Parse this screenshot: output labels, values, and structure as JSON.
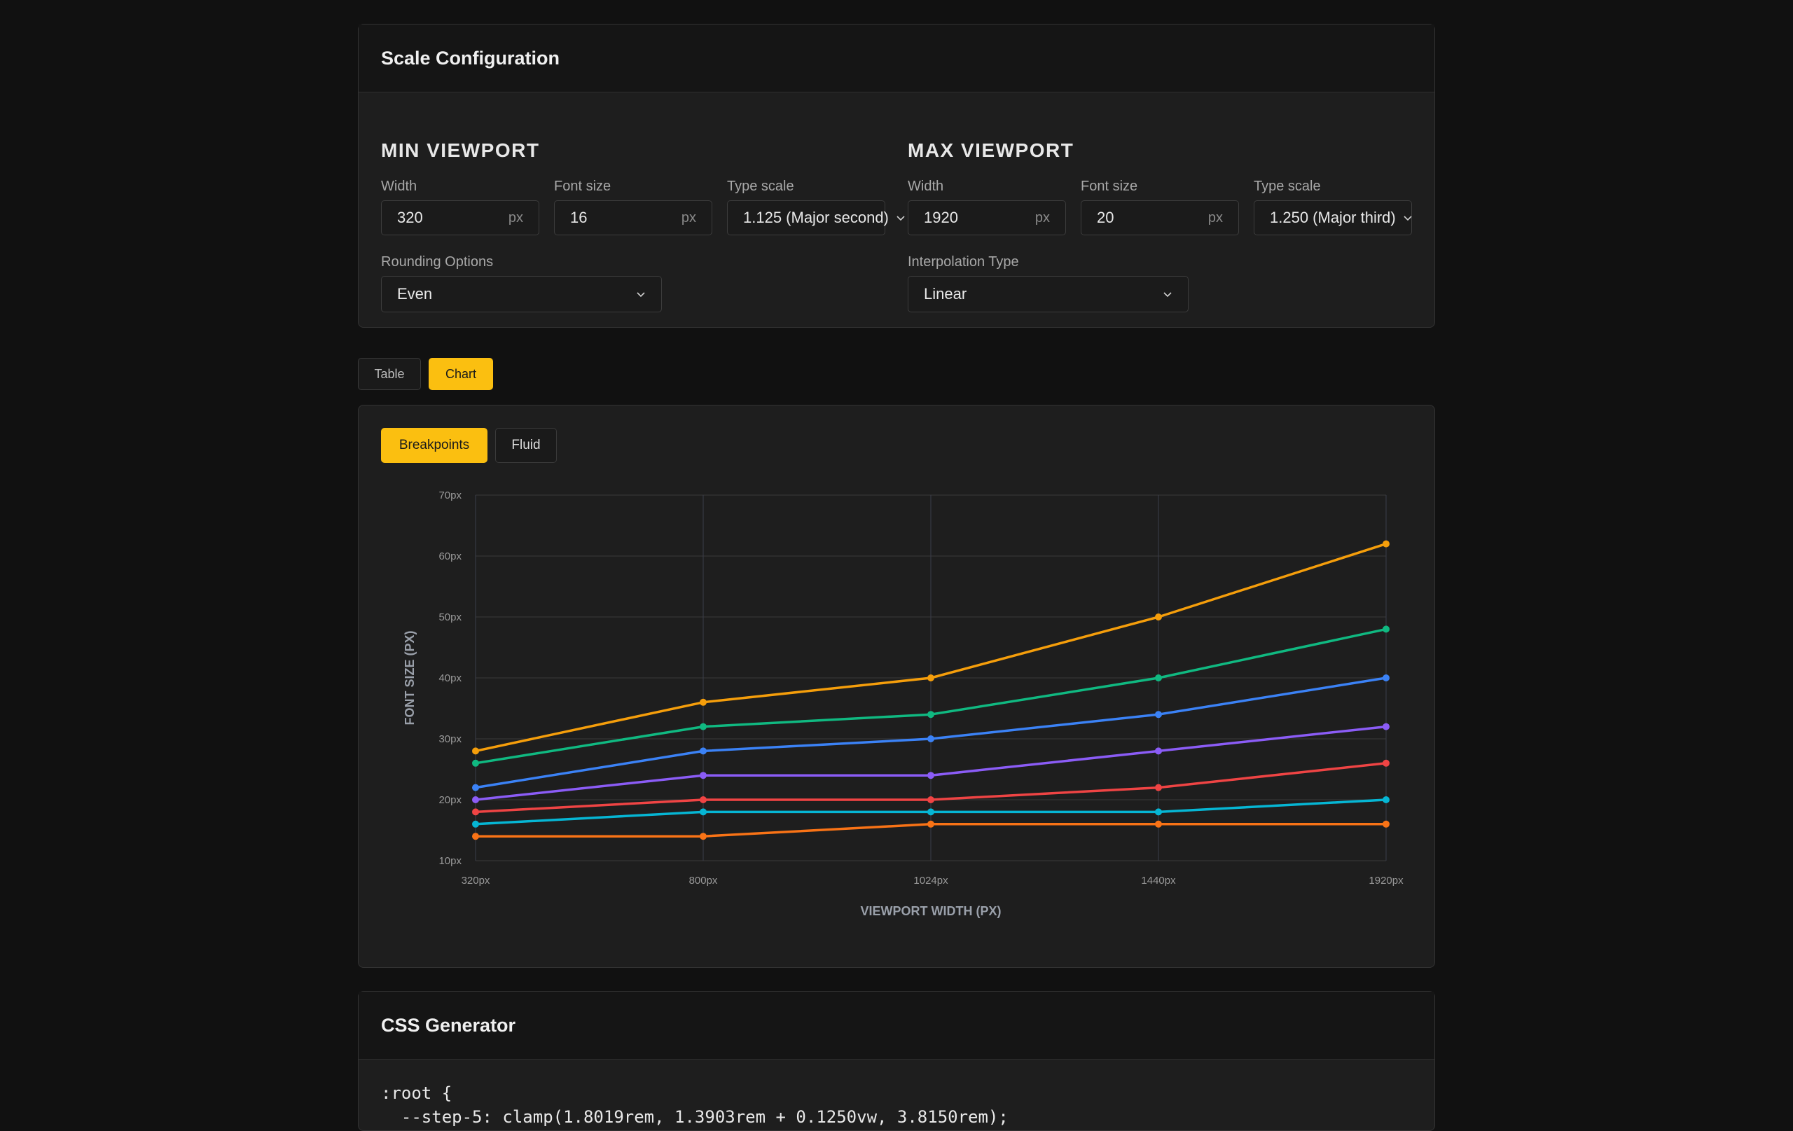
{
  "scale_config": {
    "title": "Scale Configuration",
    "min_viewport": {
      "title": "MIN VIEWPORT",
      "width_label": "Width",
      "width_value": "320",
      "font_size_label": "Font size",
      "font_size_value": "16",
      "type_scale_label": "Type scale",
      "type_scale_value": "1.125 (Major second)",
      "rounding_label": "Rounding Options",
      "rounding_value": "Even"
    },
    "max_viewport": {
      "title": "MAX VIEWPORT",
      "width_label": "Width",
      "width_value": "1920",
      "font_size_label": "Font size",
      "font_size_value": "20",
      "type_scale_label": "Type scale",
      "type_scale_value": "1.250 (Major third)",
      "interpolation_label": "Interpolation Type",
      "interpolation_value": "Linear"
    },
    "unit": "px"
  },
  "view_tabs": {
    "table": "Table",
    "chart": "Chart",
    "active": "chart"
  },
  "chart_tabs": {
    "breakpoints": "Breakpoints",
    "fluid": "Fluid",
    "active": "breakpoints"
  },
  "chart_data": {
    "type": "line",
    "xlabel": "VIEWPORT WIDTH (PX)",
    "ylabel": "FONT SIZE (PX)",
    "categories": [
      "320px",
      "800px",
      "1024px",
      "1440px",
      "1920px"
    ],
    "y_ticks": [
      "10px",
      "20px",
      "30px",
      "40px",
      "50px",
      "60px",
      "70px"
    ],
    "ylim": [
      10,
      70
    ],
    "grid": true,
    "series": [
      {
        "color": "#f59e0b",
        "values": [
          28,
          36,
          40,
          50,
          62
        ]
      },
      {
        "color": "#10b981",
        "values": [
          26,
          32,
          34,
          40,
          48
        ]
      },
      {
        "color": "#3b82f6",
        "values": [
          22,
          28,
          30,
          34,
          40
        ]
      },
      {
        "color": "#8b5cf6",
        "values": [
          20,
          24,
          24,
          28,
          32
        ]
      },
      {
        "color": "#ef4444",
        "values": [
          18,
          20,
          20,
          22,
          26
        ]
      },
      {
        "color": "#06b6d4",
        "values": [
          16,
          18,
          18,
          18,
          20
        ]
      },
      {
        "color": "#f97316",
        "values": [
          14,
          14,
          16,
          16,
          16
        ]
      }
    ]
  },
  "css_generator": {
    "title": "CSS Generator",
    "code_lines": [
      ":root {",
      "  --step-5: clamp(1.8019rem, 1.3903rem + 0.1250vw, 3.8150rem);"
    ]
  },
  "colors": {
    "accent": "#fbbf10",
    "background": "#111111",
    "card": "#1e1e1e"
  }
}
